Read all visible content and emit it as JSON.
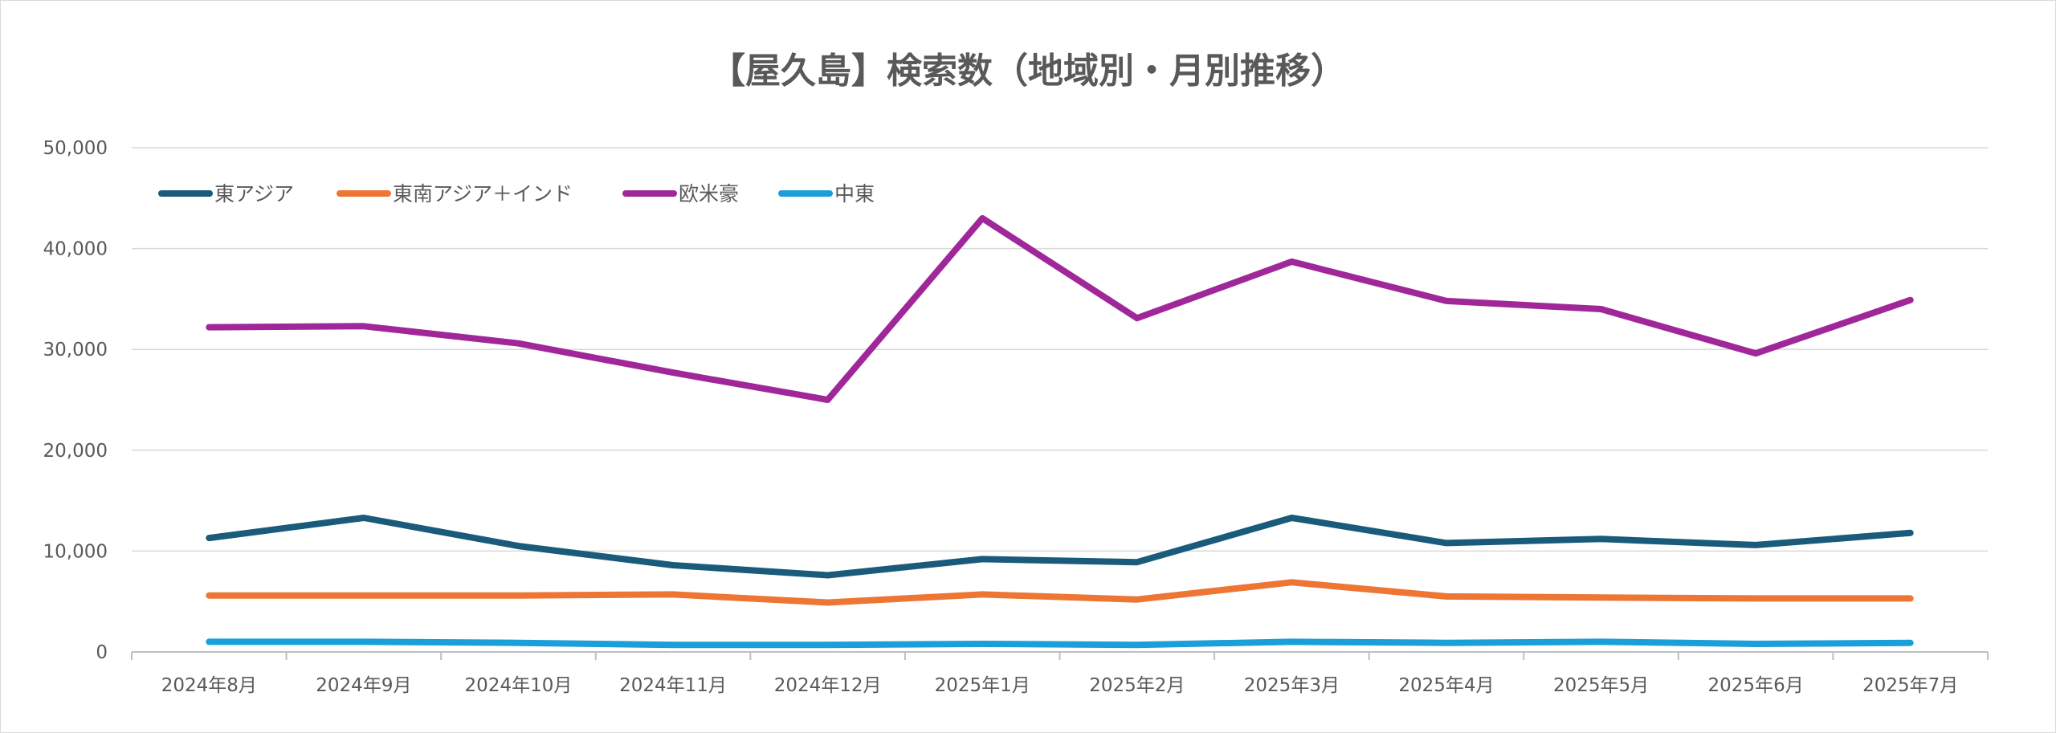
{
  "chart_data": {
    "type": "line",
    "title": "【屋久島】検索数（地域別・月別推移）",
    "xlabel": "",
    "ylabel": "",
    "categories": [
      "2024年8月",
      "2024年9月",
      "2024年10月",
      "2024年11月",
      "2024年12月",
      "2025年1月",
      "2025年2月",
      "2025年3月",
      "2025年4月",
      "2025年5月",
      "2025年6月",
      "2025年7月"
    ],
    "ylim": [
      0,
      50000
    ],
    "yticks": [
      0,
      10000,
      20000,
      30000,
      40000,
      50000
    ],
    "ytick_labels": [
      "0",
      "10,000",
      "20,000",
      "30,000",
      "40,000",
      "50,000"
    ],
    "grid": true,
    "legend_position": "top-left",
    "series": [
      {
        "name": "東アジア",
        "color": "#1a5a7a",
        "values": [
          11300,
          13300,
          10500,
          8600,
          7600,
          9200,
          8900,
          13300,
          10800,
          11200,
          10600,
          11800
        ]
      },
      {
        "name": "東南アジア＋インド",
        "color": "#ed7634",
        "values": [
          5600,
          5600,
          5600,
          5700,
          4900,
          5700,
          5200,
          6900,
          5500,
          5400,
          5300,
          5300
        ]
      },
      {
        "name": "欧米豪",
        "color": "#a0279a",
        "values": [
          32200,
          32300,
          30600,
          27700,
          25000,
          43000,
          33100,
          38700,
          34800,
          34000,
          29600,
          34900
        ]
      },
      {
        "name": "中東",
        "color": "#1a9fd8",
        "values": [
          1000,
          1000,
          900,
          700,
          700,
          800,
          700,
          1000,
          900,
          1000,
          800,
          900
        ]
      }
    ]
  }
}
